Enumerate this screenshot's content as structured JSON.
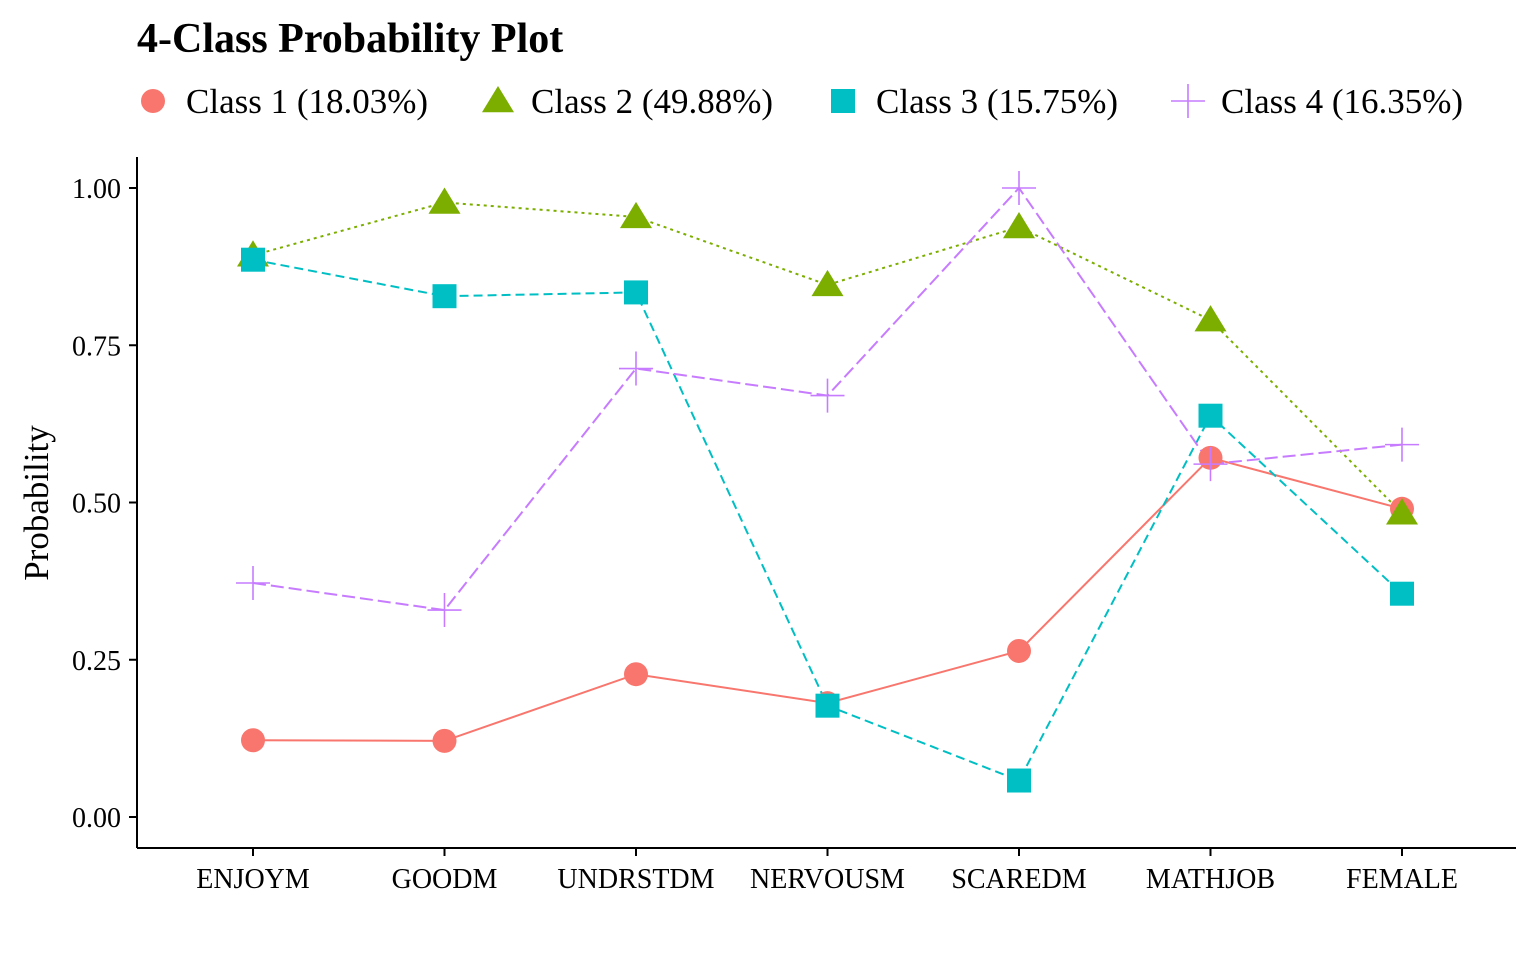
{
  "chart_data": {
    "type": "line",
    "title": "4-Class Probability Plot",
    "xlabel": "",
    "ylabel": "Probability",
    "categories": [
      "ENJOYM",
      "GOODM",
      "UNDRSTDM",
      "NERVOUSM",
      "SCAREDM",
      "MATHJOB",
      "FEMALE"
    ],
    "ylim": [
      -0.05,
      1.05
    ],
    "yticks": [
      0.0,
      0.25,
      0.5,
      0.75,
      1.0
    ],
    "ytick_labels": [
      "0.00",
      "0.25",
      "0.50",
      "0.75",
      "1.00"
    ],
    "grid": false,
    "legend_position": "top-left",
    "series": [
      {
        "name": "Class 1 (18.03%)",
        "color": "#F8766D",
        "marker": "circle",
        "line_style": "solid",
        "values": [
          0.122,
          0.121,
          0.227,
          0.181,
          0.264,
          0.571,
          0.49
        ]
      },
      {
        "name": "Class 2 (49.88%)",
        "color": "#7CAE00",
        "marker": "triangle",
        "line_style": "dotted",
        "values": [
          0.893,
          0.977,
          0.954,
          0.846,
          0.938,
          0.79,
          0.483
        ]
      },
      {
        "name": "Class 3 (15.75%)",
        "color": "#00BFC4",
        "marker": "square",
        "line_style": "dashed",
        "values": [
          0.886,
          0.828,
          0.834,
          0.177,
          0.058,
          0.638,
          0.355
        ]
      },
      {
        "name": "Class 4 (16.35%)",
        "color": "#C77CFF",
        "marker": "plus",
        "line_style": "longdash",
        "values": [
          0.372,
          0.329,
          0.713,
          0.67,
          1.0,
          0.561,
          0.592
        ]
      }
    ]
  }
}
